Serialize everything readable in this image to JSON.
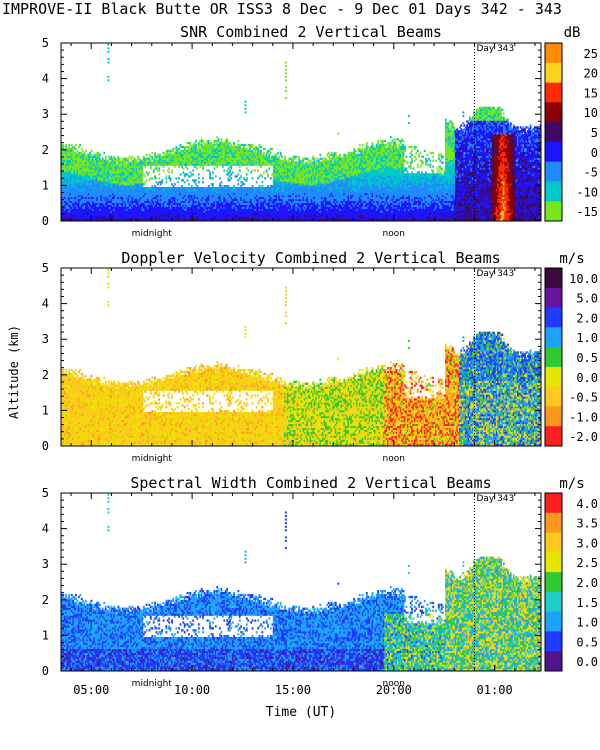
{
  "header": "IMPROVE-II  Black Butte OR  ISS3   8 Dec -  9 Dec 01 Days 342 - 343",
  "ylabel": "Altitude (km)",
  "xlabel": "Time (UT)",
  "x_tick_labels": [
    "05:00",
    "10:00",
    "15:00",
    "20:00",
    "01:00"
  ],
  "annotations": {
    "midnight": "midnight",
    "noon": "noon",
    "day_marker": "Day 343"
  },
  "chart_data": [
    {
      "type": "heatmap",
      "title": "SNR Combined 2 Vertical Beams",
      "unit": "dB",
      "xlabel": "Time (UT)",
      "ylabel": "Altitude (km)",
      "x_range_hours": [
        3.5,
        27.3
      ],
      "ylim": [
        0,
        5
      ],
      "y_ticks": [
        "0",
        "1",
        "2",
        "3",
        "4",
        "5"
      ],
      "colorbar_labels": [
        "25",
        "20",
        "15",
        "10",
        "5",
        "0",
        "-5",
        "-10",
        "-15"
      ],
      "colorbar_colors": [
        "#ff8c00",
        "#ffd21e",
        "#ff2a00",
        "#8b0000",
        "#3c0a64",
        "#1e14ff",
        "#1e8cff",
        "#00c8c8",
        "#78e61e"
      ],
      "colorbar_values": [
        25,
        20,
        15,
        10,
        5,
        0,
        -5,
        -10,
        -15
      ],
      "vmin": -17,
      "vmax": 27,
      "field": "snr"
    },
    {
      "type": "heatmap",
      "title": "Doppler Velocity Combined 2 Vertical Beams",
      "unit": "m/s",
      "xlabel": "Time (UT)",
      "ylabel": "Altitude (km)",
      "x_range_hours": [
        3.5,
        27.3
      ],
      "ylim": [
        0,
        5
      ],
      "y_ticks": [
        "0",
        "1",
        "2",
        "3",
        "4",
        "5"
      ],
      "colorbar_labels": [
        "10.0",
        "5.0",
        "2.0",
        "1.0",
        "0.5",
        "0.0",
        "-0.5",
        "-1.0",
        "-2.0"
      ],
      "colorbar_colors": [
        "#3c0a3c",
        "#6414a0",
        "#1e3cff",
        "#1ea0ff",
        "#32c832",
        "#e6e600",
        "#ffc81e",
        "#ff961e",
        "#ff1e1e"
      ],
      "colorbar_values": [
        10,
        5,
        2,
        1,
        0.5,
        0,
        -0.5,
        -1,
        -2
      ],
      "vmin": -2.2,
      "vmax": 10,
      "field": "vel"
    },
    {
      "type": "heatmap",
      "title": "Spectral Width Combined 2 Vertical Beams",
      "unit": "m/s",
      "xlabel": "Time (UT)",
      "ylabel": "Altitude (km)",
      "x_range_hours": [
        3.5,
        27.3
      ],
      "ylim": [
        0,
        5
      ],
      "y_ticks": [
        "0",
        "1",
        "2",
        "3",
        "4",
        "5"
      ],
      "colorbar_labels": [
        "4.0",
        "3.5",
        "3.0",
        "2.5",
        "2.0",
        "1.5",
        "1.0",
        "0.5",
        "0.0"
      ],
      "colorbar_colors": [
        "#ff1e1e",
        "#ff961e",
        "#ffc81e",
        "#e6e600",
        "#32c832",
        "#1ecfc8",
        "#1ea0ff",
        "#1e3cff",
        "#50148c"
      ],
      "colorbar_values": [
        4,
        3.5,
        3,
        2.5,
        2,
        1.5,
        1,
        0.5,
        0
      ],
      "vmin": 0,
      "vmax": 4.2,
      "field": "sw"
    }
  ]
}
